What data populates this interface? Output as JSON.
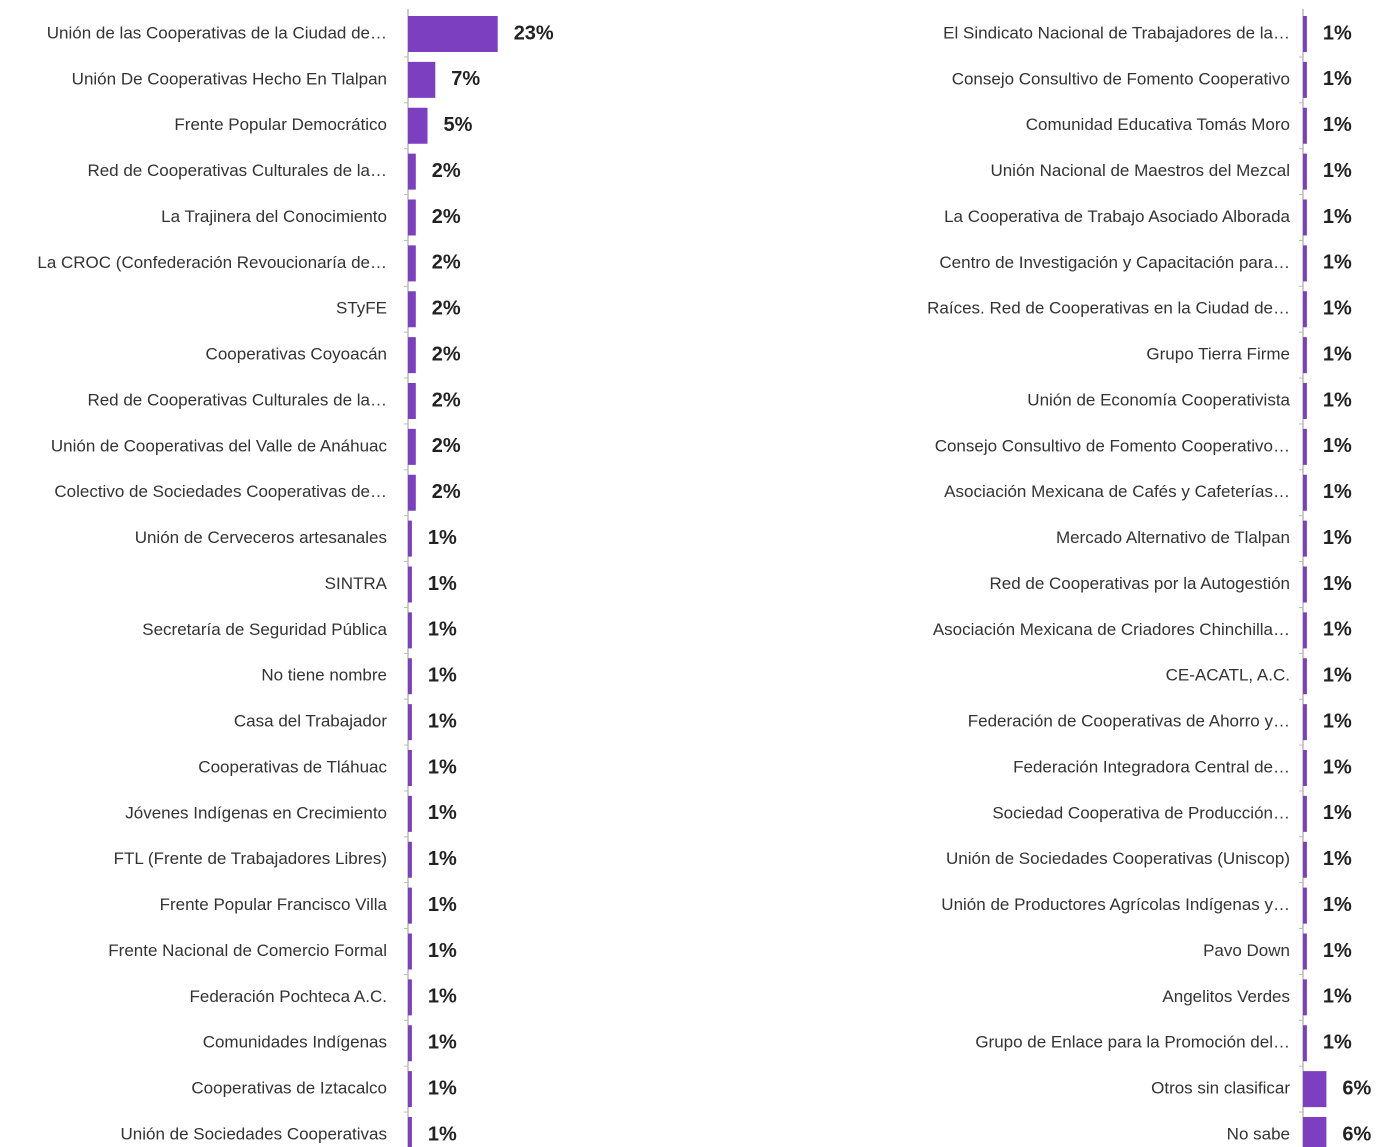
{
  "chart_data": [
    {
      "type": "bar",
      "orientation": "horizontal",
      "color": "#7b3fbf",
      "categories": [
        "Unión de las Cooperativas de la Ciudad de…",
        "Unión De Cooperativas Hecho En Tlalpan",
        "Frente Popular Democrático",
        "Red de Cooperativas Culturales de la…",
        "La Trajinera del Conocimiento",
        "La CROC (Confederación Revoucionaría de…",
        "STyFE",
        "Cooperativas Coyoacán",
        "Red de Cooperativas Culturales de la…",
        "Unión de Cooperativas del Valle de Anáhuac",
        "Colectivo de Sociedades Cooperativas de…",
        "Unión de Cerveceros artesanales",
        "SINTRA",
        "Secretaría de Seguridad Pública",
        "No tiene nombre",
        "Casa del Trabajador",
        "Cooperativas de Tláhuac",
        "Jóvenes Indígenas en Crecimiento",
        "FTL (Frente de Trabajadores Libres)",
        "Frente Popular Francisco Villa",
        "Frente Nacional de Comercio Formal",
        "Federación Pochteca A.C.",
        "Comunidades Indígenas",
        "Cooperativas de Iztacalco",
        "Unión de Sociedades Cooperativas"
      ],
      "values": [
        23,
        7,
        5,
        2,
        2,
        2,
        2,
        2,
        2,
        2,
        2,
        1,
        1,
        1,
        1,
        1,
        1,
        1,
        1,
        1,
        1,
        1,
        1,
        1,
        1
      ],
      "value_labels": [
        "23%",
        "7%",
        "5%",
        "2%",
        "2%",
        "2%",
        "2%",
        "2%",
        "2%",
        "2%",
        "2%",
        "1%",
        "1%",
        "1%",
        "1%",
        "1%",
        "1%",
        "1%",
        "1%",
        "1%",
        "1%",
        "1%",
        "1%",
        "1%",
        "1%"
      ]
    },
    {
      "type": "bar",
      "orientation": "horizontal",
      "color": "#7b3fbf",
      "categories": [
        "El Sindicato Nacional de Trabajadores de la…",
        "Consejo Consultivo de Fomento Cooperativo",
        "Comunidad Educativa Tomás Moro",
        "Unión Nacional de Maestros del Mezcal",
        "La Cooperativa de Trabajo Asociado Alborada",
        "Centro de Investigación y Capacitación para…",
        "Raíces. Red de Cooperativas en la Ciudad de…",
        "Grupo Tierra Firme",
        "Unión de Economía Cooperativista",
        "Consejo Consultivo de Fomento Cooperativo…",
        "Asociación Mexicana de Cafés y Cafeterías…",
        "Mercado Alternativo de Tlalpan",
        "Red de Cooperativas por la Autogestión",
        "Asociación Mexicana de Criadores Chinchilla…",
        "CE-ACATL, A.C.",
        "Federación de Cooperativas de Ahorro y…",
        "Federación Integradora Central de…",
        "Sociedad Cooperativa de Producción…",
        "Unión de Sociedades Cooperativas (Uniscop)",
        "Unión de Productores Agrícolas Indígenas y…",
        "Pavo Down",
        "Angelitos Verdes",
        "Grupo de Enlace para la Promoción del…",
        "Otros sin clasificar",
        "No sabe"
      ],
      "values": [
        1,
        1,
        1,
        1,
        1,
        1,
        1,
        1,
        1,
        1,
        1,
        1,
        1,
        1,
        1,
        1,
        1,
        1,
        1,
        1,
        1,
        1,
        1,
        6,
        6
      ],
      "value_labels": [
        "1%",
        "1%",
        "1%",
        "1%",
        "1%",
        "1%",
        "1%",
        "1%",
        "1%",
        "1%",
        "1%",
        "1%",
        "1%",
        "1%",
        "1%",
        "1%",
        "1%",
        "1%",
        "1%",
        "1%",
        "1%",
        "1%",
        "1%",
        "6%",
        "6%"
      ]
    }
  ]
}
